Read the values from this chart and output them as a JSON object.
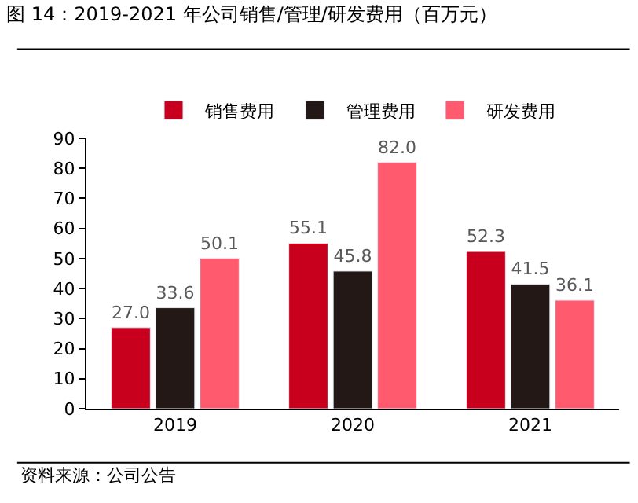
{
  "chart_data": {
    "type": "bar",
    "title": "图 14：2019-2021 年公司销售/管理/研发费用（百万元）",
    "categories": [
      "2019",
      "2020",
      "2021"
    ],
    "series": [
      {
        "name": "销售费用",
        "color": "#c8001e",
        "values": [
          27.0,
          55.1,
          52.3
        ],
        "value_labels": [
          "27.0",
          "55.1",
          "52.3"
        ]
      },
      {
        "name": "管理费用",
        "color": "#231815",
        "values": [
          33.6,
          45.8,
          41.5
        ],
        "value_labels": [
          "33.6",
          "45.8",
          "41.5"
        ]
      },
      {
        "name": "研发费用",
        "color": "#ff5a6e",
        "values": [
          50.1,
          82.0,
          36.1
        ],
        "value_labels": [
          "50.1",
          "82.0",
          "36.1"
        ]
      }
    ],
    "ylim": [
      0,
      90
    ],
    "yticks": [
      0,
      10,
      20,
      30,
      40,
      50,
      60,
      70,
      80,
      90
    ],
    "legend": "top",
    "grid": false,
    "annotations": [
      "资料来源：公司公告"
    ]
  }
}
